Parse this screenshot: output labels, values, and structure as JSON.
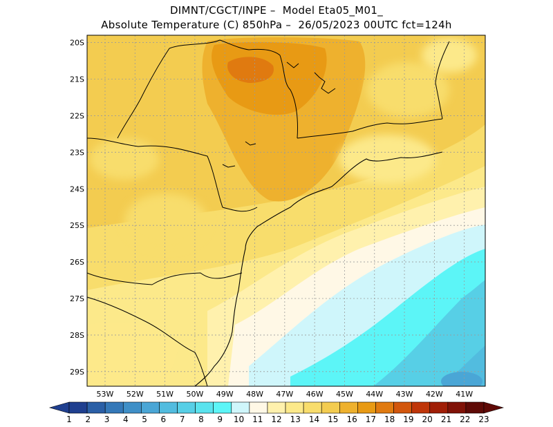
{
  "title": {
    "line1": "DIMNT/CGCT/INPE –  Model Eta05_M01_",
    "line2": "Absolute Temperature (C) 850hPa –  26/05/2023 00UTC fct=124h"
  },
  "axes": {
    "lat_labels": [
      "20S",
      "21S",
      "22S",
      "23S",
      "24S",
      "25S",
      "26S",
      "27S",
      "28S",
      "29S"
    ],
    "lon_labels": [
      "53W",
      "52W",
      "51W",
      "50W",
      "49W",
      "48W",
      "47W",
      "46W",
      "45W",
      "44W",
      "43W",
      "42W",
      "41W"
    ],
    "lat_range": [
      -29.4,
      -19.8
    ],
    "lon_range": [
      -53.6,
      -40.3
    ],
    "grid": "dotted"
  },
  "colorbar": {
    "labels": [
      "1",
      "2",
      "3",
      "4",
      "5",
      "6",
      "7",
      "8",
      "9",
      "10",
      "11",
      "12",
      "13",
      "14",
      "15",
      "16",
      "17",
      "18",
      "19",
      "20",
      "21",
      "22",
      "23"
    ],
    "colors": [
      "#1f3f8f",
      "#2a5fa6",
      "#3478b8",
      "#3f8fc7",
      "#4aa6d6",
      "#52bcdf",
      "#57cfe6",
      "#5ae3ee",
      "#5cf5f7",
      "#cff6fb",
      "#fff8e6",
      "#fff1ad",
      "#fce98a",
      "#f8dd6c",
      "#f3cc50",
      "#eeb12e",
      "#e89a14",
      "#e07a10",
      "#d2560c",
      "#bf3508",
      "#a01e06",
      "#801207",
      "#5f0a06"
    ]
  },
  "chart_data": {
    "type": "heatmap",
    "variable": "Absolute Temperature (C) 850hPa",
    "run": "26/05/2023 00UTC",
    "forecast": "fct=124h",
    "regions": [
      {
        "area": "northwest interior (20S-23S, 53W-49W)",
        "value_C": 16
      },
      {
        "area": "core near 20.5S 49W",
        "value_C": 18
      },
      {
        "area": "around 21S-23S, 49W-46W",
        "value_C": 17
      },
      {
        "area": "around 24S, 48W-45W",
        "value_C": 16
      },
      {
        "area": "southwest (25S-29S, 53W-49W)",
        "value_C": 14
      },
      {
        "area": "coast 26S-28S",
        "value_C": 12
      },
      {
        "area": "ocean 26S-29S, 48W-44W",
        "value_C": 10
      },
      {
        "area": "ocean 26S-29S, 44W-41W",
        "value_C": 9
      },
      {
        "area": "far southeast corner 29S 41W",
        "value_C": 8
      }
    ]
  }
}
